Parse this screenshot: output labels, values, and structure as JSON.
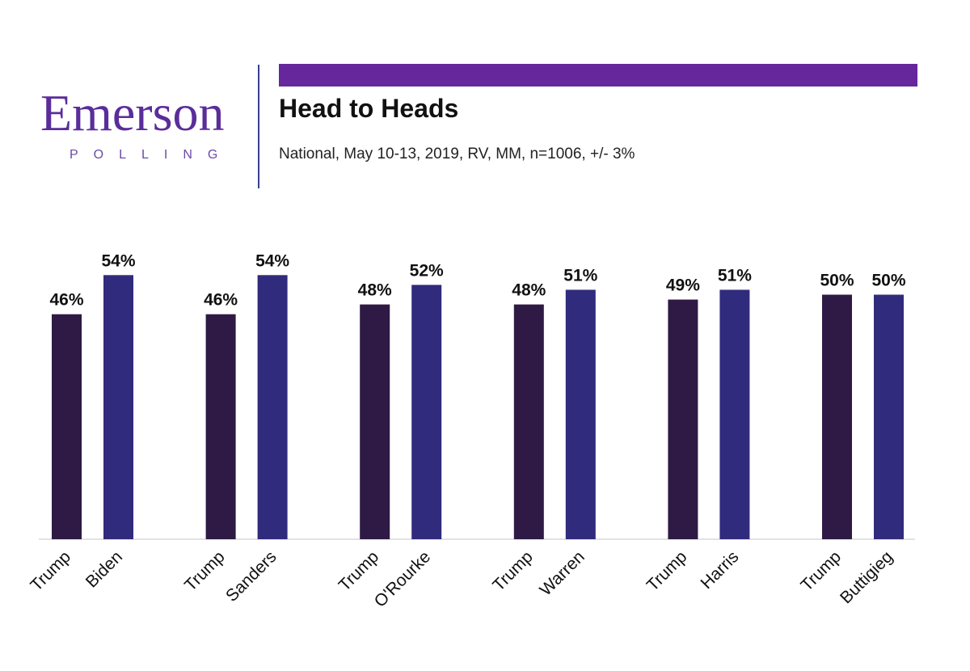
{
  "logo": {
    "wordmark": "Emerson",
    "subline": "POLLING"
  },
  "header": {
    "title": "Head to Heads",
    "subtitle": "National, May 10-13, 2019, RV, MM, n=1006, +/- 3%"
  },
  "colors": {
    "trump": "#2e1a44",
    "challenger": "#302b7c",
    "accent": "#66269c",
    "logo": "#5b2d9a"
  },
  "chart_data": {
    "type": "bar",
    "title": "Head to Heads",
    "categories": [
      "Trump",
      "Biden",
      "Trump",
      "Sanders",
      "Trump",
      "O'Rourke",
      "Trump",
      "Warren",
      "Trump",
      "Harris",
      "Trump",
      "Buttigieg"
    ],
    "values": [
      46,
      54,
      46,
      54,
      48,
      52,
      48,
      51,
      49,
      51,
      50,
      50
    ],
    "labels": [
      "46%",
      "54%",
      "46%",
      "54%",
      "48%",
      "52%",
      "48%",
      "51%",
      "49%",
      "51%",
      "50%",
      "50%"
    ],
    "matchups": [
      {
        "trump": 46,
        "challenger": "Biden",
        "challenger_value": 54
      },
      {
        "trump": 46,
        "challenger": "Sanders",
        "challenger_value": 54
      },
      {
        "trump": 48,
        "challenger": "O'Rourke",
        "challenger_value": 52
      },
      {
        "trump": 48,
        "challenger": "Warren",
        "challenger_value": 51
      },
      {
        "trump": 49,
        "challenger": "Harris",
        "challenger_value": 51
      },
      {
        "trump": 50,
        "challenger": "Buttigieg",
        "challenger_value": 50
      }
    ],
    "xlabel": "",
    "ylabel": "",
    "ylim": [
      0,
      60
    ],
    "grid": false,
    "legend": "none"
  }
}
